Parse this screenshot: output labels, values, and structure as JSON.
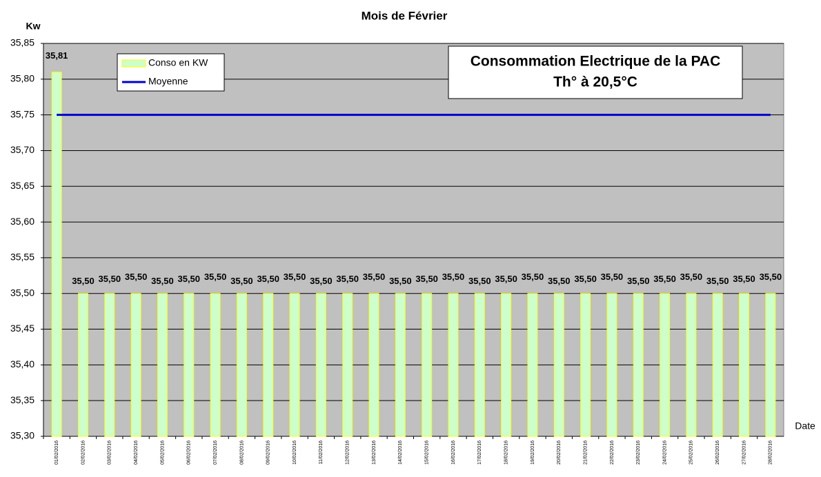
{
  "chart_data": {
    "type": "bar",
    "title": "Mois de Février",
    "y_label": "Kw",
    "x_label": "Date",
    "annotation": [
      "Consommation Electrique de la PAC",
      "Th° à 20,5°C"
    ],
    "categories": [
      "01/02/2016",
      "02/02/2016",
      "03/02/2016",
      "04/02/2016",
      "05/02/2016",
      "06/02/2016",
      "07/02/2016",
      "08/02/2016",
      "09/02/2016",
      "10/02/2016",
      "11/02/2016",
      "12/02/2016",
      "13/02/2016",
      "14/02/2016",
      "15/02/2016",
      "16/02/2016",
      "17/02/2016",
      "18/02/2016",
      "19/02/2016",
      "20/02/2016",
      "21/02/2016",
      "22/02/2016",
      "23/02/2016",
      "24/02/2016",
      "25/02/2016",
      "26/02/2016",
      "27/02/2016",
      "28/02/2016"
    ],
    "series": [
      {
        "name": "Conso en KW",
        "type": "bar",
        "color": "#ccffcc",
        "edge_color": "#ffff00",
        "values": [
          35.81,
          35.5,
          35.5,
          35.5,
          35.5,
          35.5,
          35.5,
          35.5,
          35.5,
          35.5,
          35.5,
          35.5,
          35.5,
          35.5,
          35.5,
          35.5,
          35.5,
          35.5,
          35.5,
          35.5,
          35.5,
          35.5,
          35.5,
          35.5,
          35.5,
          35.5,
          35.5,
          35.5
        ],
        "value_labels": [
          "35,81",
          "35,50",
          "35,50",
          "35,50",
          "35,50",
          "35,50",
          "35,50",
          "35,50",
          "35,50",
          "35,50",
          "35,50",
          "35,50",
          "35,50",
          "35,50",
          "35,50",
          "35,50",
          "35,50",
          "35,50",
          "35,50",
          "35,50",
          "35,50",
          "35,50",
          "35,50",
          "35,50",
          "35,50",
          "35,50",
          "35,50",
          "35,50"
        ],
        "label_color": "#0000cc"
      },
      {
        "name": "Moyenne",
        "type": "line",
        "color": "#0000cc",
        "values": [
          35.75,
          35.75,
          35.75,
          35.75,
          35.75,
          35.75,
          35.75,
          35.75,
          35.75,
          35.75,
          35.75,
          35.75,
          35.75,
          35.75,
          35.75,
          35.75,
          35.75,
          35.75,
          35.75,
          35.75,
          35.75,
          35.75,
          35.75,
          35.75,
          35.75,
          35.75,
          35.75,
          35.75
        ]
      }
    ],
    "ylim": [
      35.3,
      35.85
    ],
    "yticks": [
      {
        "value": 35.3,
        "label": "35,30"
      },
      {
        "value": 35.35,
        "label": "35,35"
      },
      {
        "value": 35.4,
        "label": "35,40"
      },
      {
        "value": 35.45,
        "label": "35,45"
      },
      {
        "value": 35.5,
        "label": "35,50"
      },
      {
        "value": 35.55,
        "label": "35,55"
      },
      {
        "value": 35.6,
        "label": "35,60"
      },
      {
        "value": 35.65,
        "label": "35,65"
      },
      {
        "value": 35.7,
        "label": "35,70"
      },
      {
        "value": 35.75,
        "label": "35,75"
      },
      {
        "value": 35.8,
        "label": "35,80"
      },
      {
        "value": 35.85,
        "label": "35,85"
      }
    ],
    "grid": true,
    "background": "#c0c0c0"
  }
}
